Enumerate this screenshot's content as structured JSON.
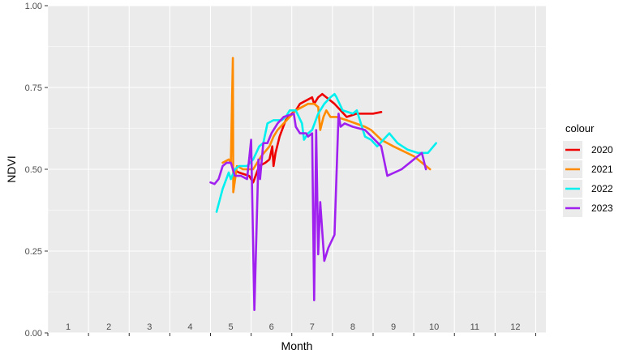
{
  "chart_data": {
    "type": "line",
    "xlabel": "Month",
    "ylabel": "NDVI",
    "ylim": [
      0,
      1
    ],
    "yticks": [
      "0.00",
      "0.25",
      "0.50",
      "0.75",
      "1.00"
    ],
    "ytick_values": [
      0,
      0.25,
      0.5,
      0.75,
      1.0
    ],
    "xlim": [
      0.5,
      12.75
    ],
    "x_tick_labels": [
      "1",
      "2",
      "3",
      "4",
      "5",
      "6",
      "7",
      "8",
      "9",
      "10",
      "11",
      "12"
    ],
    "x_tick_values": [
      1,
      2,
      3,
      4,
      5,
      6,
      7,
      8,
      9,
      10,
      11,
      12
    ],
    "grid": true,
    "panel_background": "#ebebeb",
    "legend": {
      "title": "colour",
      "position": "right"
    },
    "series": [
      {
        "name": "2020",
        "color": "#ee0000",
        "points": [
          [
            5.05,
            0.5
          ],
          [
            5.2,
            0.49
          ],
          [
            5.45,
            0.48
          ],
          [
            5.55,
            0.46
          ],
          [
            5.7,
            0.51
          ],
          [
            5.85,
            0.52
          ],
          [
            5.95,
            0.53
          ],
          [
            6.02,
            0.57
          ],
          [
            6.05,
            0.51
          ],
          [
            6.1,
            0.55
          ],
          [
            6.2,
            0.6
          ],
          [
            6.35,
            0.65
          ],
          [
            6.5,
            0.67
          ],
          [
            6.6,
            0.68
          ],
          [
            6.65,
            0.69
          ],
          [
            6.7,
            0.7
          ],
          [
            6.85,
            0.71
          ],
          [
            7.0,
            0.72
          ],
          [
            7.05,
            0.7
          ],
          [
            7.15,
            0.72
          ],
          [
            7.25,
            0.73
          ],
          [
            7.35,
            0.72
          ],
          [
            7.55,
            0.7
          ],
          [
            7.7,
            0.68
          ],
          [
            7.85,
            0.66
          ],
          [
            8.1,
            0.67
          ],
          [
            8.5,
            0.67
          ],
          [
            8.7,
            0.675
          ]
        ]
      },
      {
        "name": "2021",
        "color": "#ff8c00",
        "points": [
          [
            4.8,
            0.52
          ],
          [
            4.95,
            0.53
          ],
          [
            5.0,
            0.52
          ],
          [
            5.05,
            0.84
          ],
          [
            5.06,
            0.43
          ],
          [
            5.15,
            0.51
          ],
          [
            5.3,
            0.5
          ],
          [
            5.55,
            0.5
          ],
          [
            5.75,
            0.54
          ],
          [
            5.95,
            0.57
          ],
          [
            6.05,
            0.6
          ],
          [
            6.15,
            0.62
          ],
          [
            6.3,
            0.64
          ],
          [
            6.45,
            0.66
          ],
          [
            6.6,
            0.68
          ],
          [
            6.75,
            0.69
          ],
          [
            6.9,
            0.7
          ],
          [
            7.05,
            0.7
          ],
          [
            7.15,
            0.69
          ],
          [
            7.2,
            0.62
          ],
          [
            7.28,
            0.66
          ],
          [
            7.35,
            0.68
          ],
          [
            7.45,
            0.66
          ],
          [
            7.6,
            0.66
          ],
          [
            7.85,
            0.65
          ],
          [
            8.3,
            0.63
          ],
          [
            8.45,
            0.62
          ],
          [
            8.7,
            0.59
          ],
          [
            9.0,
            0.57
          ],
          [
            9.5,
            0.54
          ],
          [
            9.9,
            0.5
          ]
        ]
      },
      {
        "name": "2022",
        "color": "#00f0f0",
        "points": [
          [
            4.65,
            0.37
          ],
          [
            4.8,
            0.44
          ],
          [
            4.95,
            0.49
          ],
          [
            5.0,
            0.47
          ],
          [
            5.1,
            0.5
          ],
          [
            5.2,
            0.51
          ],
          [
            5.4,
            0.51
          ],
          [
            5.55,
            0.53
          ],
          [
            5.7,
            0.57
          ],
          [
            5.8,
            0.58
          ],
          [
            5.9,
            0.64
          ],
          [
            6.05,
            0.65
          ],
          [
            6.15,
            0.65
          ],
          [
            6.25,
            0.65
          ],
          [
            6.35,
            0.66
          ],
          [
            6.45,
            0.68
          ],
          [
            6.6,
            0.68
          ],
          [
            6.75,
            0.64
          ],
          [
            6.8,
            0.59
          ],
          [
            6.9,
            0.61
          ],
          [
            7.0,
            0.62
          ],
          [
            7.15,
            0.67
          ],
          [
            7.3,
            0.7
          ],
          [
            7.45,
            0.72
          ],
          [
            7.55,
            0.73
          ],
          [
            7.6,
            0.72
          ],
          [
            7.75,
            0.68
          ],
          [
            8.0,
            0.67
          ],
          [
            8.1,
            0.68
          ],
          [
            8.15,
            0.66
          ],
          [
            8.3,
            0.6
          ],
          [
            8.45,
            0.59
          ],
          [
            8.6,
            0.57
          ],
          [
            8.75,
            0.59
          ],
          [
            8.9,
            0.61
          ],
          [
            9.1,
            0.58
          ],
          [
            9.35,
            0.56
          ],
          [
            9.6,
            0.55
          ],
          [
            9.85,
            0.55
          ],
          [
            10.05,
            0.58
          ]
        ]
      },
      {
        "name": "2023",
        "color": "#a020f0",
        "points": [
          [
            4.5,
            0.46
          ],
          [
            4.6,
            0.455
          ],
          [
            4.7,
            0.47
          ],
          [
            4.8,
            0.51
          ],
          [
            4.9,
            0.52
          ],
          [
            5.0,
            0.52
          ],
          [
            5.1,
            0.48
          ],
          [
            5.25,
            0.48
          ],
          [
            5.4,
            0.47
          ],
          [
            5.5,
            0.59
          ],
          [
            5.58,
            0.07
          ],
          [
            5.68,
            0.53
          ],
          [
            5.72,
            0.47
          ],
          [
            5.8,
            0.58
          ],
          [
            5.9,
            0.58
          ],
          [
            6.0,
            0.61
          ],
          [
            6.15,
            0.64
          ],
          [
            6.3,
            0.66
          ],
          [
            6.55,
            0.67
          ],
          [
            6.6,
            0.63
          ],
          [
            6.7,
            0.61
          ],
          [
            6.85,
            0.61
          ],
          [
            6.9,
            0.6
          ],
          [
            7.0,
            0.61
          ],
          [
            7.05,
            0.1
          ],
          [
            7.1,
            0.62
          ],
          [
            7.15,
            0.24
          ],
          [
            7.2,
            0.4
          ],
          [
            7.3,
            0.22
          ],
          [
            7.4,
            0.26
          ],
          [
            7.55,
            0.3
          ],
          [
            7.65,
            0.67
          ],
          [
            7.7,
            0.63
          ],
          [
            7.8,
            0.64
          ],
          [
            8.0,
            0.63
          ],
          [
            8.3,
            0.62
          ],
          [
            8.7,
            0.57
          ],
          [
            8.85,
            0.48
          ],
          [
            9.2,
            0.5
          ],
          [
            9.7,
            0.55
          ],
          [
            9.8,
            0.5
          ]
        ]
      }
    ]
  }
}
